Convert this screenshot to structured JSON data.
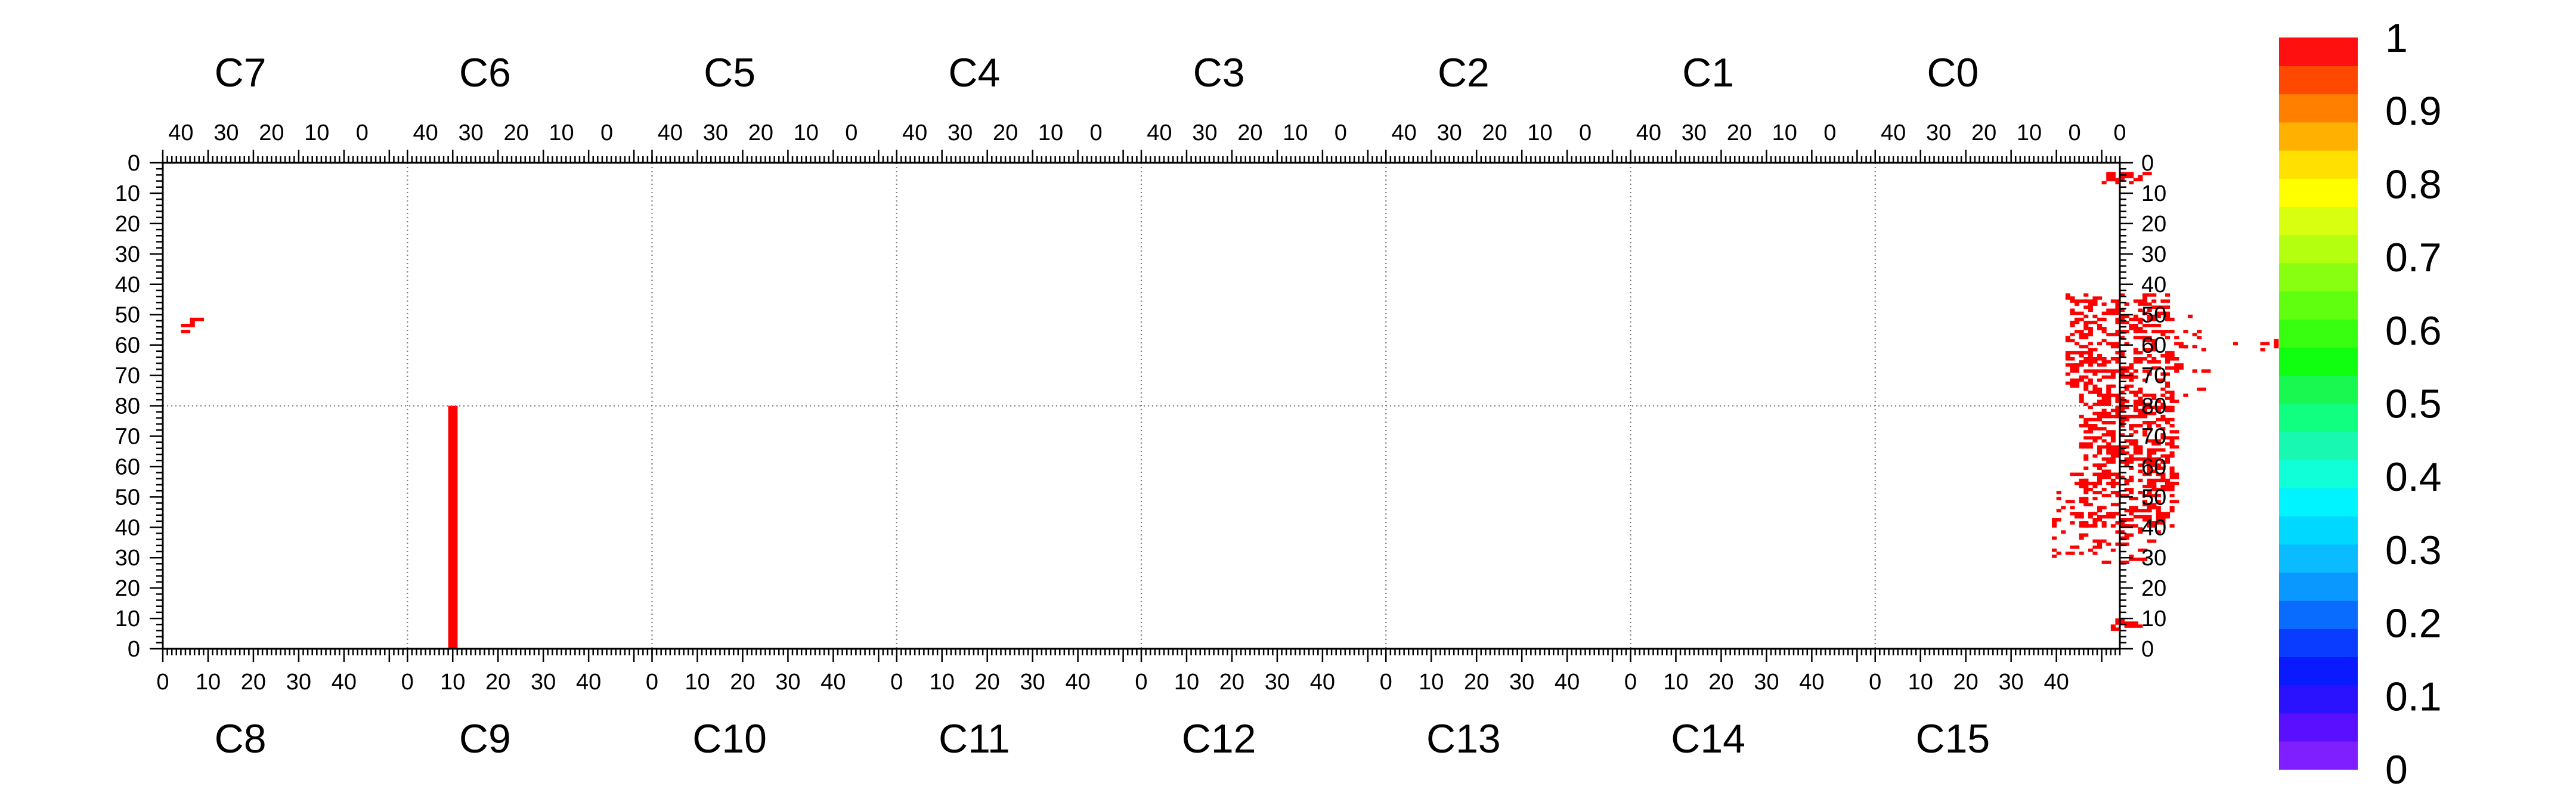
{
  "chart_data": {
    "type": "heatmap",
    "title": "",
    "xlabel": "",
    "ylabel": "",
    "grid": true,
    "chip_labels_top": [
      "C7",
      "C6",
      "C5",
      "C4",
      "C3",
      "C2",
      "C1",
      "C0"
    ],
    "chip_labels_bottom": [
      "C8",
      "C9",
      "C10",
      "C11",
      "C12",
      "C13",
      "C14",
      "C15"
    ],
    "x_tick_labels_top": [
      "40",
      "30",
      "20",
      "10",
      "0"
    ],
    "x_tick_labels_bottom": [
      "0",
      "10",
      "20",
      "30",
      "40"
    ],
    "y_tick_labels": [
      "0",
      "10",
      "20",
      "30",
      "40",
      "50",
      "60",
      "70",
      "80",
      "70",
      "60",
      "50",
      "40",
      "30",
      "20",
      "10",
      "0"
    ],
    "x_range_per_chip": [
      0,
      54
    ],
    "y_range": [
      0,
      160
    ],
    "colorbar": {
      "range": [
        0,
        1
      ],
      "tick_labels": [
        "0",
        "0.1",
        "0.2",
        "0.3",
        "0.4",
        "0.5",
        "0.6",
        "0.7",
        "0.8",
        "0.9",
        "1"
      ],
      "colors": [
        "#7f1fff",
        "#5a10ff",
        "#2a12ff",
        "#0a1aff",
        "#0a3cff",
        "#0a6cff",
        "#0a98ff",
        "#0abcff",
        "#00d8ff",
        "#00f4ff",
        "#10ffd8",
        "#18f8b0",
        "#10ff80",
        "#18f850",
        "#10ff10",
        "#38ff10",
        "#60ff10",
        "#88ff10",
        "#b4ff10",
        "#d8ff10",
        "#ffff00",
        "#ffe000",
        "#ffb000",
        "#ff8000",
        "#ff4800",
        "#ff1010"
      ]
    },
    "cell_color": "#ff0000",
    "cell_value": 1,
    "rects": [
      {
        "x": 6,
        "y": 51,
        "w": 3,
        "h": 1
      },
      {
        "x": 6,
        "y": 52,
        "w": 1,
        "h": 1
      },
      {
        "x": 4,
        "y": 53,
        "w": 3,
        "h": 1
      },
      {
        "x": 4,
        "y": 55,
        "w": 2,
        "h": 1
      },
      {
        "x": 63,
        "y": 80,
        "w": 2,
        "h": 80
      }
    ],
    "clusters": [
      {
        "x0": 428,
        "x1": 438,
        "y0": 3,
        "y1": 7,
        "density": 0.35,
        "seed": 11
      },
      {
        "x0": 430,
        "x1": 437,
        "y0": 150,
        "y1": 154,
        "density": 0.3,
        "seed": 13
      },
      {
        "x0": 420,
        "x1": 443,
        "y0": 43,
        "y1": 76,
        "density": 0.34,
        "seed": 3
      },
      {
        "x0": 423,
        "x1": 444,
        "y0": 76,
        "y1": 120,
        "density": 0.36,
        "seed": 5
      },
      {
        "x0": 443,
        "x1": 451,
        "y0": 46,
        "y1": 78,
        "density": 0.12,
        "seed": 7
      },
      {
        "x0": 417,
        "x1": 424,
        "y0": 100,
        "y1": 132,
        "density": 0.15,
        "seed": 9
      },
      {
        "x0": 425,
        "x1": 441,
        "y0": 120,
        "y1": 132,
        "density": 0.18,
        "seed": 17
      },
      {
        "x0": 455,
        "x1": 467,
        "y0": 58,
        "y1": 62,
        "density": 0.15,
        "seed": 19
      }
    ]
  }
}
